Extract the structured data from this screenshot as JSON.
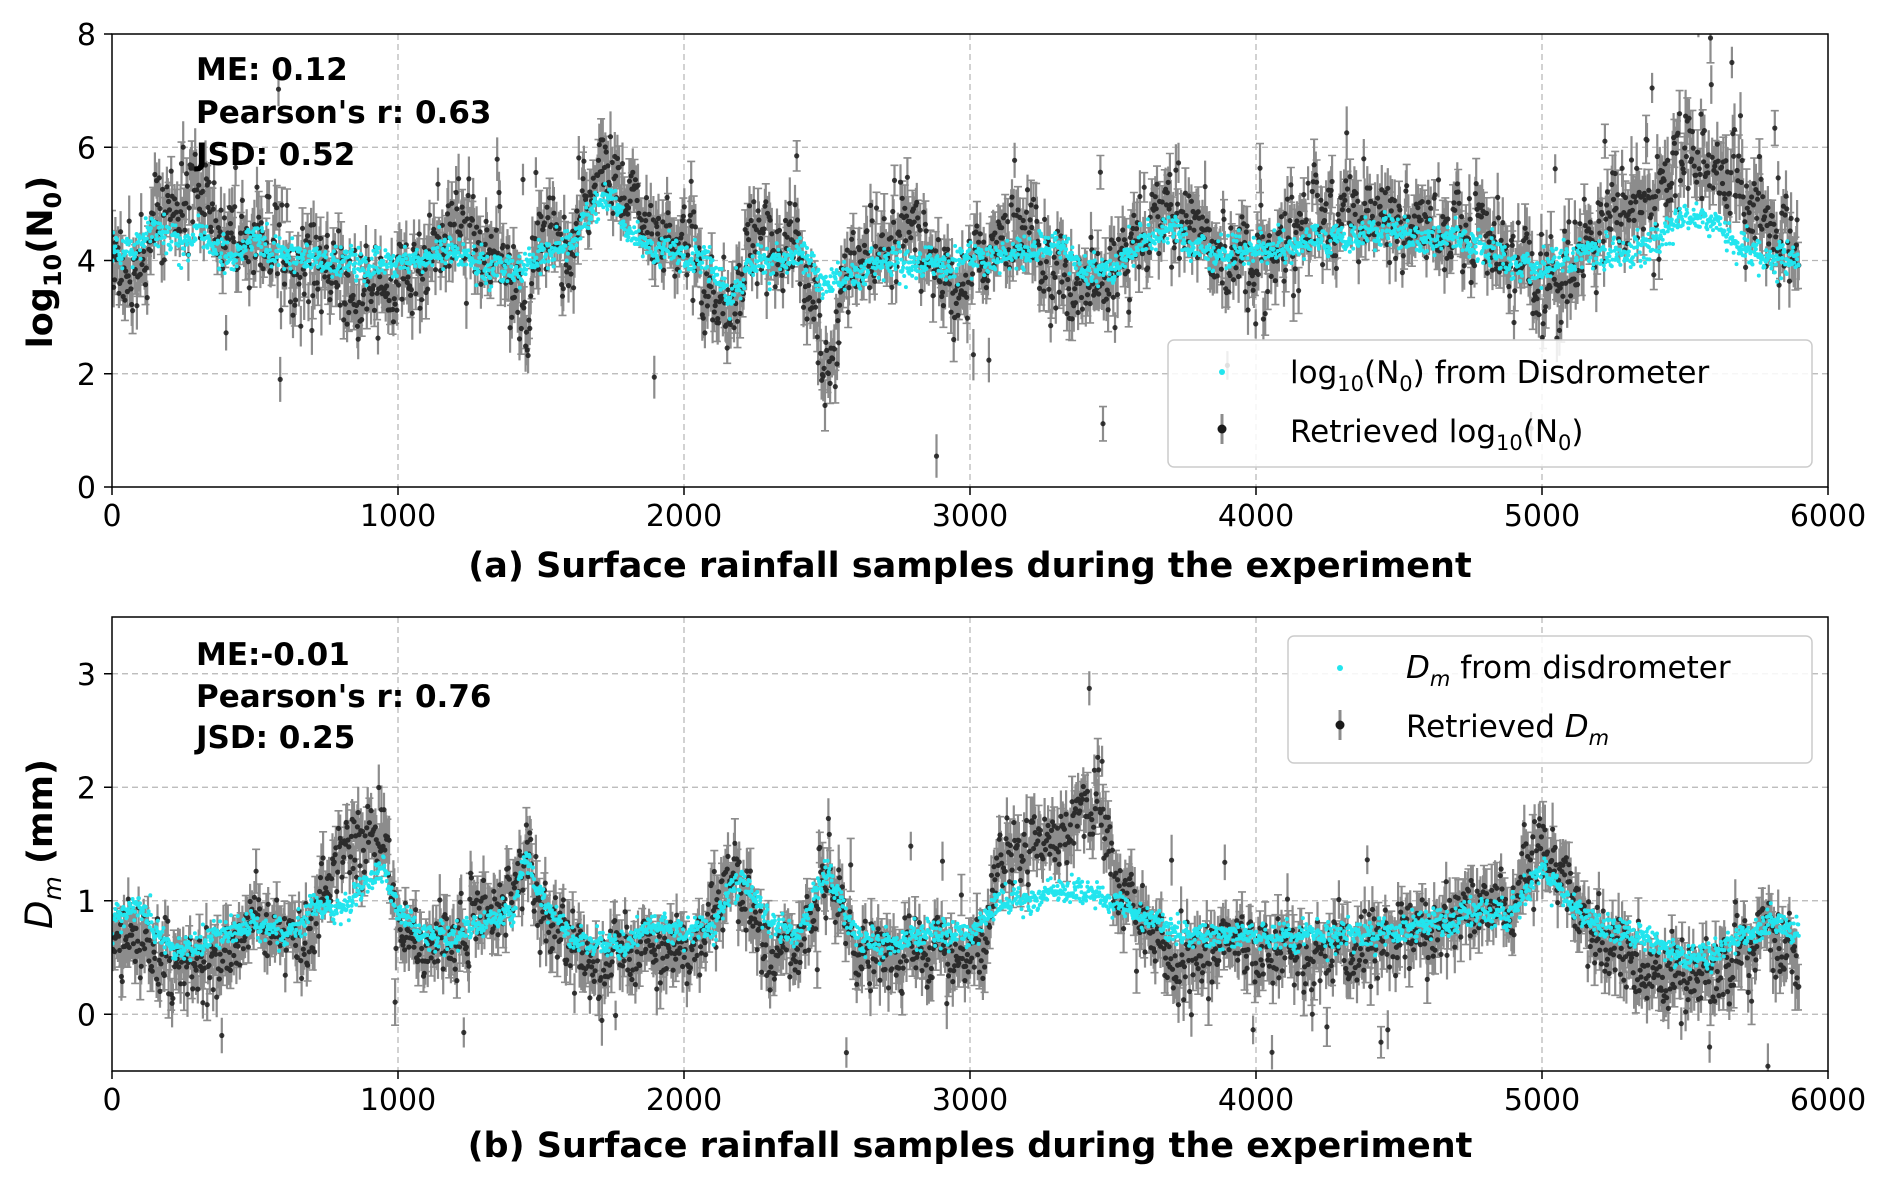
{
  "chart_data": [
    {
      "panel": "a",
      "type": "scatter",
      "xlabel": "(a) Surface rainfall samples during the experiment",
      "ylabel_base": "log",
      "ylabel_sub": "10",
      "ylabel_arg": "(N",
      "ylabel_arg_sub": "0",
      "ylabel_end": ")",
      "xlim": [
        0,
        6000
      ],
      "ylim": [
        0,
        8
      ],
      "xticks": [
        "0",
        "1000",
        "2000",
        "3000",
        "4000",
        "5000",
        "6000"
      ],
      "yticks": [
        "0",
        "2",
        "4",
        "6",
        "8"
      ],
      "grid": true,
      "legend_placement": "lower-right",
      "stats": [
        "ME: 0.12",
        "Pearson's r: 0.63",
        "JSD: 0.52"
      ],
      "legend": {
        "series1_text": {
          "a": "log",
          "b": "10",
          "c": "(N",
          "d": "0",
          "e": ") from Disdrometer"
        },
        "series2_text": {
          "a": "Retrieved log",
          "b": "10",
          "c": "(N",
          "d": "0",
          "e": ")"
        }
      },
      "n_samples": 5900,
      "series": [
        {
          "key": "disdrometer",
          "color": "#22e5ee",
          "segments": [
            [
              0,
              4.1
            ],
            [
              100,
              4.3
            ],
            [
              150,
              4.6
            ],
            [
              250,
              4.2
            ],
            [
              300,
              4.5
            ],
            [
              400,
              4.0
            ],
            [
              500,
              4.3
            ],
            [
              700,
              4.0
            ],
            [
              900,
              3.9
            ],
            [
              1000,
              4.0
            ],
            [
              1100,
              4.1
            ],
            [
              1200,
              4.2
            ],
            [
              1300,
              3.9
            ],
            [
              1400,
              3.8
            ],
            [
              1500,
              4.1
            ],
            [
              1600,
              4.2
            ],
            [
              1650,
              4.6
            ],
            [
              1700,
              5.1
            ],
            [
              1750,
              5.2
            ],
            [
              1800,
              4.5
            ],
            [
              1900,
              4.2
            ],
            [
              2000,
              4.1
            ],
            [
              2100,
              3.8
            ],
            [
              2150,
              3.3
            ],
            [
              2250,
              4.0
            ],
            [
              2400,
              4.1
            ],
            [
              2500,
              3.6
            ],
            [
              2600,
              3.8
            ],
            [
              2700,
              3.9
            ],
            [
              2800,
              3.9
            ],
            [
              2900,
              4.0
            ],
            [
              3000,
              4.0
            ],
            [
              3200,
              4.1
            ],
            [
              3300,
              4.3
            ],
            [
              3400,
              3.9
            ],
            [
              3500,
              3.9
            ],
            [
              3600,
              4.3
            ],
            [
              3700,
              4.6
            ],
            [
              3800,
              4.2
            ],
            [
              3900,
              4.1
            ],
            [
              4000,
              4.2
            ],
            [
              4200,
              4.3
            ],
            [
              4400,
              4.5
            ],
            [
              4600,
              4.4
            ],
            [
              4800,
              4.2
            ],
            [
              4900,
              4.0
            ],
            [
              5000,
              3.9
            ],
            [
              5100,
              4.0
            ],
            [
              5200,
              4.2
            ],
            [
              5300,
              4.1
            ],
            [
              5400,
              4.4
            ],
            [
              5500,
              4.8
            ],
            [
              5600,
              4.7
            ],
            [
              5700,
              4.2
            ],
            [
              5800,
              3.9
            ],
            [
              5900,
              4.0
            ]
          ],
          "noise": 0.28
        },
        {
          "key": "retrieved",
          "color": "#1a1a1a",
          "errcolor": "#8c8c8c",
          "segments": [
            [
              0,
              4.0
            ],
            [
              100,
              3.6
            ],
            [
              150,
              4.8
            ],
            [
              250,
              5.0
            ],
            [
              300,
              5.3
            ],
            [
              400,
              4.5
            ],
            [
              500,
              4.4
            ],
            [
              600,
              4.0
            ],
            [
              700,
              3.9
            ],
            [
              800,
              3.7
            ],
            [
              900,
              3.6
            ],
            [
              1000,
              3.5
            ],
            [
              1100,
              4.1
            ],
            [
              1200,
              4.6
            ],
            [
              1300,
              4.3
            ],
            [
              1400,
              3.6
            ],
            [
              1450,
              3.0
            ],
            [
              1500,
              4.5
            ],
            [
              1600,
              4.0
            ],
            [
              1650,
              5.0
            ],
            [
              1700,
              5.4
            ],
            [
              1750,
              5.8
            ],
            [
              1800,
              5.2
            ],
            [
              1900,
              4.6
            ],
            [
              2000,
              4.1
            ],
            [
              2100,
              3.5
            ],
            [
              2150,
              3.0
            ],
            [
              2250,
              4.5
            ],
            [
              2400,
              4.3
            ],
            [
              2450,
              3.0
            ],
            [
              2500,
              2.2
            ],
            [
              2550,
              3.5
            ],
            [
              2600,
              3.8
            ],
            [
              2700,
              4.2
            ],
            [
              2800,
              4.6
            ],
            [
              2850,
              4.4
            ],
            [
              2900,
              3.7
            ],
            [
              3000,
              3.7
            ],
            [
              3100,
              4.2
            ],
            [
              3200,
              4.4
            ],
            [
              3300,
              3.7
            ],
            [
              3400,
              3.5
            ],
            [
              3450,
              3.2
            ],
            [
              3500,
              3.6
            ],
            [
              3600,
              4.4
            ],
            [
              3700,
              5.0
            ],
            [
              3800,
              4.5
            ],
            [
              3900,
              4.2
            ],
            [
              4000,
              4.0
            ],
            [
              4100,
              4.4
            ],
            [
              4200,
              4.6
            ],
            [
              4300,
              4.8
            ],
            [
              4400,
              4.7
            ],
            [
              4600,
              4.7
            ],
            [
              4800,
              4.4
            ],
            [
              4900,
              3.9
            ],
            [
              5000,
              3.5
            ],
            [
              5100,
              4.1
            ],
            [
              5200,
              4.6
            ],
            [
              5300,
              5.0
            ],
            [
              5400,
              5.2
            ],
            [
              5500,
              5.9
            ],
            [
              5600,
              5.8
            ],
            [
              5700,
              5.2
            ],
            [
              5800,
              4.5
            ],
            [
              5900,
              4.2
            ]
          ],
          "noise": 0.75
        }
      ]
    },
    {
      "panel": "b",
      "type": "scatter",
      "xlabel": "(b) Surface rainfall samples during the experiment",
      "ylabel_main": "D",
      "ylabel_sub": "m",
      "ylabel_unit": " (mm)",
      "xlim": [
        0,
        6000
      ],
      "ylim": [
        -0.5,
        3.5
      ],
      "xticks": [
        "0",
        "1000",
        "2000",
        "3000",
        "4000",
        "5000",
        "6000"
      ],
      "yticks": [
        "0",
        "1",
        "2",
        "3"
      ],
      "grid": true,
      "legend_placement": "upper-right",
      "stats": [
        "ME:-0.01",
        "Pearson's r: 0.76",
        "JSD: 0.25"
      ],
      "legend": {
        "series1_text": {
          "a": "D",
          "b": "m",
          "c": " from disdrometer"
        },
        "series2_text": {
          "a": "Retrieved ",
          "b": "D",
          "c": "m"
        }
      },
      "n_samples": 5900,
      "series": [
        {
          "key": "disdrometer",
          "color": "#22e5ee",
          "segments": [
            [
              0,
              0.8
            ],
            [
              100,
              1.0
            ],
            [
              150,
              0.7
            ],
            [
              200,
              0.6
            ],
            [
              300,
              0.6
            ],
            [
              400,
              0.7
            ],
            [
              500,
              0.8
            ],
            [
              600,
              0.7
            ],
            [
              700,
              0.9
            ],
            [
              800,
              0.9
            ],
            [
              900,
              1.2
            ],
            [
              950,
              1.3
            ],
            [
              1000,
              0.9
            ],
            [
              1100,
              0.7
            ],
            [
              1200,
              0.7
            ],
            [
              1300,
              0.8
            ],
            [
              1400,
              0.9
            ],
            [
              1450,
              1.4
            ],
            [
              1500,
              1.0
            ],
            [
              1600,
              0.7
            ],
            [
              1700,
              0.6
            ],
            [
              1800,
              0.6
            ],
            [
              1900,
              0.8
            ],
            [
              2000,
              0.7
            ],
            [
              2100,
              0.8
            ],
            [
              2150,
              1.0
            ],
            [
              2200,
              1.2
            ],
            [
              2300,
              0.8
            ],
            [
              2400,
              0.7
            ],
            [
              2500,
              1.3
            ],
            [
              2550,
              1.0
            ],
            [
              2600,
              0.7
            ],
            [
              2700,
              0.6
            ],
            [
              2800,
              0.7
            ],
            [
              2900,
              0.7
            ],
            [
              3000,
              0.7
            ],
            [
              3100,
              1.0
            ],
            [
              3200,
              1.0
            ],
            [
              3300,
              1.1
            ],
            [
              3400,
              1.1
            ],
            [
              3500,
              1.0
            ],
            [
              3600,
              0.9
            ],
            [
              3700,
              0.7
            ],
            [
              3800,
              0.7
            ],
            [
              3900,
              0.7
            ],
            [
              4000,
              0.7
            ],
            [
              4200,
              0.7
            ],
            [
              4400,
              0.7
            ],
            [
              4600,
              0.8
            ],
            [
              4800,
              0.9
            ],
            [
              4900,
              0.9
            ],
            [
              5000,
              1.3
            ],
            [
              5100,
              1.0
            ],
            [
              5200,
              0.8
            ],
            [
              5300,
              0.7
            ],
            [
              5400,
              0.6
            ],
            [
              5500,
              0.5
            ],
            [
              5600,
              0.5
            ],
            [
              5700,
              0.7
            ],
            [
              5800,
              0.8
            ],
            [
              5900,
              0.7
            ]
          ],
          "noise": 0.12
        },
        {
          "key": "retrieved",
          "color": "#1a1a1a",
          "errcolor": "#8c8c8c",
          "segments": [
            [
              0,
              0.5
            ],
            [
              100,
              0.7
            ],
            [
              150,
              0.5
            ],
            [
              200,
              0.4
            ],
            [
              300,
              0.4
            ],
            [
              400,
              0.5
            ],
            [
              500,
              0.8
            ],
            [
              600,
              0.6
            ],
            [
              700,
              0.8
            ],
            [
              800,
              1.5
            ],
            [
              900,
              1.6
            ],
            [
              950,
              1.7
            ],
            [
              1000,
              0.8
            ],
            [
              1100,
              0.5
            ],
            [
              1200,
              0.7
            ],
            [
              1300,
              0.9
            ],
            [
              1400,
              1.0
            ],
            [
              1450,
              1.5
            ],
            [
              1500,
              0.8
            ],
            [
              1600,
              0.5
            ],
            [
              1700,
              0.4
            ],
            [
              1800,
              0.5
            ],
            [
              1900,
              0.6
            ],
            [
              2000,
              0.5
            ],
            [
              2100,
              0.8
            ],
            [
              2150,
              1.2
            ],
            [
              2200,
              1.1
            ],
            [
              2300,
              0.5
            ],
            [
              2400,
              0.6
            ],
            [
              2500,
              1.2
            ],
            [
              2550,
              0.9
            ],
            [
              2600,
              0.5
            ],
            [
              2700,
              0.5
            ],
            [
              2800,
              0.6
            ],
            [
              2900,
              0.5
            ],
            [
              3000,
              0.5
            ],
            [
              3050,
              0.6
            ],
            [
              3100,
              1.4
            ],
            [
              3200,
              1.5
            ],
            [
              3300,
              1.6
            ],
            [
              3400,
              1.8
            ],
            [
              3450,
              1.9
            ],
            [
              3500,
              1.3
            ],
            [
              3600,
              0.9
            ],
            [
              3700,
              0.5
            ],
            [
              3800,
              0.5
            ],
            [
              3900,
              0.6
            ],
            [
              4000,
              0.6
            ],
            [
              4200,
              0.5
            ],
            [
              4400,
              0.6
            ],
            [
              4600,
              0.7
            ],
            [
              4800,
              1.0
            ],
            [
              4900,
              0.9
            ],
            [
              5000,
              1.6
            ],
            [
              5100,
              1.0
            ],
            [
              5200,
              0.6
            ],
            [
              5300,
              0.5
            ],
            [
              5400,
              0.4
            ],
            [
              5500,
              0.3
            ],
            [
              5600,
              0.3
            ],
            [
              5700,
              0.5
            ],
            [
              5800,
              0.7
            ],
            [
              5900,
              0.5
            ]
          ],
          "noise": 0.3
        }
      ]
    }
  ]
}
